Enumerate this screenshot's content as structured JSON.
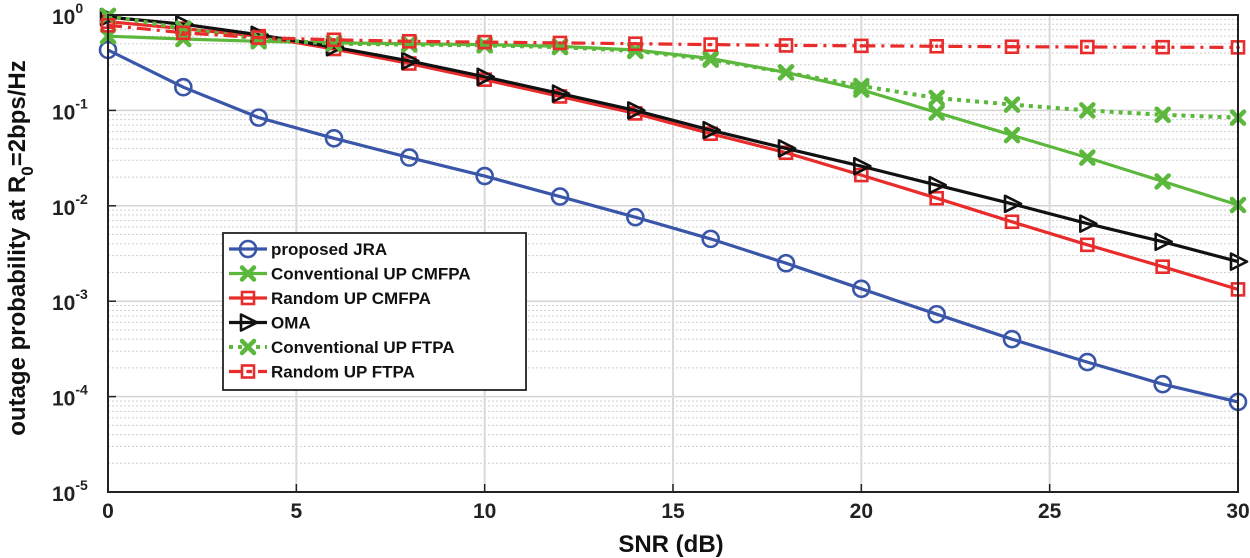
{
  "chart_data": {
    "type": "line",
    "title": "",
    "xlabel": "SNR (dB)",
    "ylabel": {
      "main": "outage probability at R",
      "subscript": "0",
      "suffix": "=2bps/Hz"
    },
    "xlim": [
      0,
      30
    ],
    "ylim": [
      1e-05,
      1
    ],
    "yscale": "log",
    "grid": true,
    "x_ticks": [
      0,
      5,
      10,
      15,
      20,
      25,
      30
    ],
    "y_ticks": [
      {
        "value": 1,
        "base": "10",
        "exp": "0"
      },
      {
        "value": 0.1,
        "base": "10",
        "exp": "-1"
      },
      {
        "value": 0.01,
        "base": "10",
        "exp": "-2"
      },
      {
        "value": 0.001,
        "base": "10",
        "exp": "-3"
      },
      {
        "value": 0.0001,
        "base": "10",
        "exp": "-4"
      },
      {
        "value": 1e-05,
        "base": "10",
        "exp": "-5"
      }
    ],
    "legend_position": "lower-left",
    "series": [
      {
        "name": "proposed JRA",
        "color": "#3a56a8",
        "marker": "circle",
        "dash": "solid",
        "x": [
          0,
          2,
          4,
          6,
          8,
          10,
          12,
          14,
          16,
          18,
          20,
          22,
          24,
          26,
          28,
          30
        ],
        "y": [
          0.43,
          0.175,
          0.084,
          0.051,
          0.032,
          0.0205,
          0.0125,
          0.0076,
          0.0045,
          0.0025,
          0.00135,
          0.00073,
          0.0004,
          0.00023,
          0.000135,
          8.8e-05
        ]
      },
      {
        "name": "Conventional UP CMFPA",
        "color": "#5cb83c",
        "marker": "x",
        "dash": "solid",
        "x": [
          0,
          2,
          4,
          6,
          8,
          10,
          12,
          14,
          16,
          18,
          20,
          22,
          24,
          26,
          28,
          30
        ],
        "y": [
          0.6,
          0.56,
          0.53,
          0.51,
          0.5,
          0.49,
          0.47,
          0.43,
          0.35,
          0.25,
          0.165,
          0.095,
          0.055,
          0.032,
          0.018,
          0.0102
        ]
      },
      {
        "name": "Random UP CMFPA",
        "color": "#e82c2c",
        "marker": "square",
        "dash": "solid",
        "x": [
          0,
          2,
          4,
          6,
          8,
          10,
          12,
          14,
          16,
          18,
          20,
          22,
          24,
          26,
          28,
          30
        ],
        "y": [
          0.85,
          0.72,
          0.6,
          0.44,
          0.31,
          0.21,
          0.14,
          0.093,
          0.057,
          0.036,
          0.021,
          0.012,
          0.0068,
          0.0039,
          0.0023,
          0.00133
        ]
      },
      {
        "name": "OMA",
        "color": "#111111",
        "marker": "triangle-right",
        "dash": "solid",
        "x": [
          0,
          2,
          4,
          6,
          8,
          10,
          12,
          14,
          16,
          18,
          20,
          22,
          24,
          26,
          28,
          30
        ],
        "y": [
          0.95,
          0.8,
          0.62,
          0.46,
          0.33,
          0.225,
          0.15,
          0.1,
          0.062,
          0.04,
          0.026,
          0.0165,
          0.0105,
          0.0065,
          0.0042,
          0.0026
        ]
      },
      {
        "name": "Conventional UP FTPA",
        "color": "#5cb83c",
        "marker": "x",
        "dash": "dotted",
        "x": [
          0,
          2,
          4,
          6,
          8,
          10,
          12,
          14,
          16,
          18,
          20,
          22,
          24,
          26,
          28,
          30
        ],
        "y": [
          0.98,
          0.72,
          0.56,
          0.5,
          0.49,
          0.48,
          0.46,
          0.42,
          0.34,
          0.25,
          0.18,
          0.135,
          0.115,
          0.1,
          0.09,
          0.084
        ]
      },
      {
        "name": "Random UP FTPA",
        "color": "#e82c2c",
        "marker": "square-dot",
        "dash": "dashdot",
        "x": [
          0,
          2,
          4,
          6,
          8,
          10,
          12,
          14,
          16,
          18,
          20,
          22,
          24,
          26,
          28,
          30
        ],
        "y": [
          0.78,
          0.65,
          0.58,
          0.55,
          0.53,
          0.52,
          0.51,
          0.5,
          0.49,
          0.48,
          0.475,
          0.47,
          0.465,
          0.462,
          0.46,
          0.458
        ]
      }
    ]
  }
}
